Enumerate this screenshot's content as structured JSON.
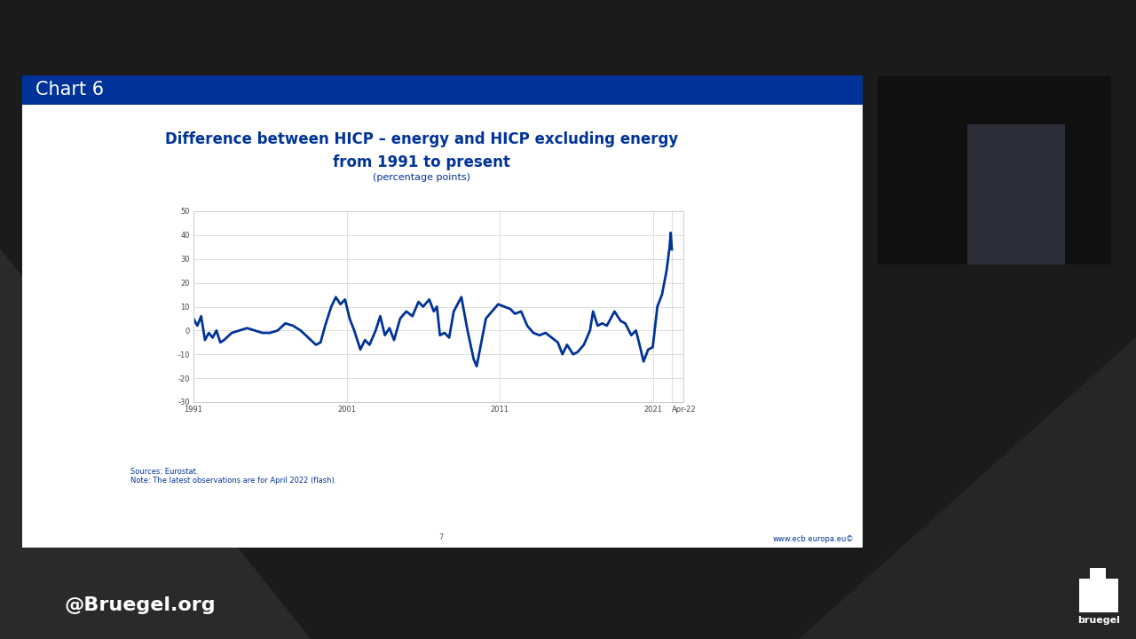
{
  "chart_data": {
    "type": "line",
    "title": "Difference between HICP – energy and HICP excluding energy from 1991 to present",
    "subtitle": "(percentage points)",
    "x": [
      1991.0,
      1991.25,
      1991.5,
      1991.75,
      1992.0,
      1992.25,
      1992.5,
      1992.75,
      1993.0,
      1993.5,
      1994.0,
      1994.5,
      1995.0,
      1995.5,
      1996.0,
      1996.5,
      1997.0,
      1997.5,
      1998.0,
      1998.5,
      1999.0,
      1999.3,
      1999.6,
      2000.0,
      2000.3,
      2000.6,
      2000.9,
      2001.2,
      2001.5,
      2001.9,
      2002.2,
      2002.5,
      2002.9,
      2003.2,
      2003.5,
      2003.8,
      2004.1,
      2004.5,
      2004.9,
      2005.3,
      2005.7,
      2006.0,
      2006.4,
      2006.7,
      2006.9,
      2007.1,
      2007.4,
      2007.7,
      2008.0,
      2008.5,
      2008.9,
      2009.3,
      2009.5,
      2009.8,
      2010.1,
      2010.5,
      2010.9,
      2011.3,
      2011.7,
      2012.0,
      2012.4,
      2012.8,
      2013.2,
      2013.6,
      2014.0,
      2014.4,
      2014.8,
      2015.1,
      2015.4,
      2015.8,
      2016.1,
      2016.5,
      2016.9,
      2017.1,
      2017.4,
      2017.7,
      2018.0,
      2018.5,
      2018.9,
      2019.2,
      2019.6,
      2019.9,
      2020.1,
      2020.4,
      2020.7,
      2021.0,
      2021.3,
      2021.6,
      2021.9,
      2022.1,
      2022.17,
      2022.25
    ],
    "values": [
      5,
      2,
      6,
      -4,
      -1,
      -3,
      0,
      -5,
      -4,
      -1,
      0,
      1,
      0,
      -1,
      -1,
      0,
      3,
      2,
      0,
      -3,
      -6,
      -5,
      2,
      10,
      14,
      11,
      13,
      5,
      0,
      -8,
      -4,
      -6,
      0,
      6,
      -2,
      1,
      -4,
      5,
      8,
      6,
      12,
      10,
      13,
      8,
      10,
      -2,
      -1,
      -3,
      8,
      14,
      0,
      -12,
      -15,
      -5,
      5,
      8,
      11,
      10,
      9,
      7,
      8,
      2,
      -1,
      -2,
      -1,
      -3,
      -5,
      -10,
      -6,
      -10,
      -9,
      -6,
      0,
      8,
      2,
      3,
      2,
      8,
      4,
      3,
      -2,
      0,
      -5,
      -13,
      -8,
      -7,
      10,
      15,
      25,
      35,
      41,
      34
    ],
    "color": "#003399",
    "xlim": [
      1991,
      2023
    ],
    "xticks": [
      1991,
      2001,
      2011,
      2021,
      {
        "value": 2022.25,
        "label": "Apr-22"
      }
    ],
    "ylim": [
      -30,
      50
    ],
    "yticks": [
      -30,
      -20,
      -10,
      0,
      10,
      20,
      30,
      40,
      50
    ],
    "grid": true
  },
  "slide": {
    "header": "Chart 6",
    "sources": "Sources: Eurostat.",
    "note": "Note: The latest observations are for April 2022 (flash).",
    "page": "7",
    "website": "www.ecb.europa.eu©"
  },
  "overlay": {
    "twitter": "@Bruegel.org",
    "logo": "bruegel"
  }
}
